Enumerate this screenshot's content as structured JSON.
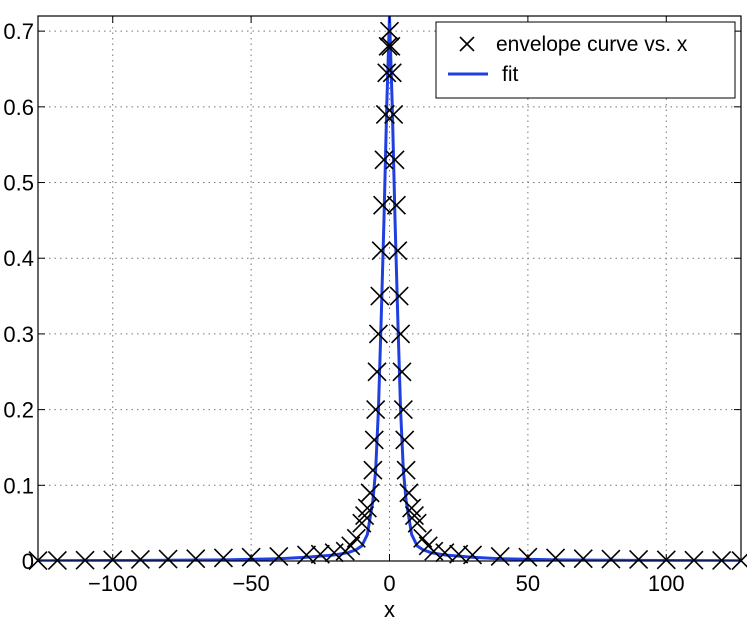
{
  "chart_data": {
    "type": "line",
    "title": "",
    "xlabel": "x",
    "ylabel": "",
    "xlim": [
      -127,
      127
    ],
    "ylim": [
      0,
      0.72
    ],
    "xticks": [
      -100,
      -50,
      0,
      50,
      100
    ],
    "xtick_labels": [
      "−100",
      "−50",
      "0",
      "50",
      "100"
    ],
    "yticks": [
      0,
      0.1,
      0.2,
      0.3,
      0.4,
      0.5,
      0.6,
      0.7
    ],
    "ytick_labels": [
      "0",
      "0.1",
      "0.2",
      "0.3",
      "0.4",
      "0.5",
      "0.6",
      "0.7"
    ],
    "grid": true,
    "legend_position": "top-right",
    "series": [
      {
        "name": "envelope curve vs. x",
        "style": "markers-x",
        "color": "#000000",
        "x": [
          -127,
          -120,
          -110,
          -100,
          -90,
          -80,
          -70,
          -60,
          -50,
          -40,
          -30,
          -25,
          -20,
          -16,
          -14,
          -12,
          -10,
          -9,
          -8,
          -7,
          -6,
          -5.5,
          -5,
          -4.5,
          -4,
          -3.5,
          -3,
          -2.5,
          -2,
          -1.5,
          -1,
          -0.5,
          0,
          0.5,
          1,
          1.5,
          2,
          2.5,
          3,
          3.5,
          4,
          4.5,
          5,
          5.5,
          6,
          7,
          8,
          9,
          10,
          12,
          14,
          16,
          20,
          25,
          30,
          40,
          50,
          60,
          70,
          80,
          90,
          100,
          110,
          120,
          127
        ],
        "y": [
          0.0005,
          0.0007,
          0.001,
          0.0015,
          0.002,
          0.0025,
          0.003,
          0.004,
          0.005,
          0.006,
          0.008,
          0.009,
          0.011,
          0.013,
          0.02,
          0.03,
          0.05,
          0.06,
          0.07,
          0.09,
          0.12,
          0.16,
          0.2,
          0.25,
          0.3,
          0.35,
          0.41,
          0.47,
          0.53,
          0.59,
          0.645,
          0.68,
          0.7,
          0.68,
          0.645,
          0.59,
          0.53,
          0.47,
          0.41,
          0.35,
          0.3,
          0.25,
          0.2,
          0.16,
          0.12,
          0.09,
          0.07,
          0.06,
          0.05,
          0.03,
          0.02,
          0.013,
          0.011,
          0.009,
          0.008,
          0.006,
          0.005,
          0.004,
          0.003,
          0.0025,
          0.002,
          0.0015,
          0.001,
          0.0007,
          0.0005
        ]
      },
      {
        "name": "fit",
        "style": "line",
        "color": "#1f3fe0",
        "x": [
          -127,
          -100,
          -80,
          -60,
          -40,
          -30,
          -20,
          -15,
          -12,
          -10,
          -8,
          -6,
          -5,
          -4,
          -3,
          -2,
          -1,
          0,
          1,
          2,
          3,
          4,
          5,
          6,
          8,
          10,
          12,
          15,
          20,
          30,
          40,
          60,
          80,
          100,
          127
        ],
        "y": [
          0.0003,
          0.0006,
          0.001,
          0.0015,
          0.003,
          0.005,
          0.008,
          0.011,
          0.015,
          0.02,
          0.035,
          0.08,
          0.12,
          0.2,
          0.32,
          0.45,
          0.6,
          0.72,
          0.6,
          0.45,
          0.32,
          0.2,
          0.12,
          0.08,
          0.035,
          0.02,
          0.015,
          0.011,
          0.008,
          0.005,
          0.003,
          0.0015,
          0.001,
          0.0006,
          0.0003
        ]
      }
    ]
  }
}
